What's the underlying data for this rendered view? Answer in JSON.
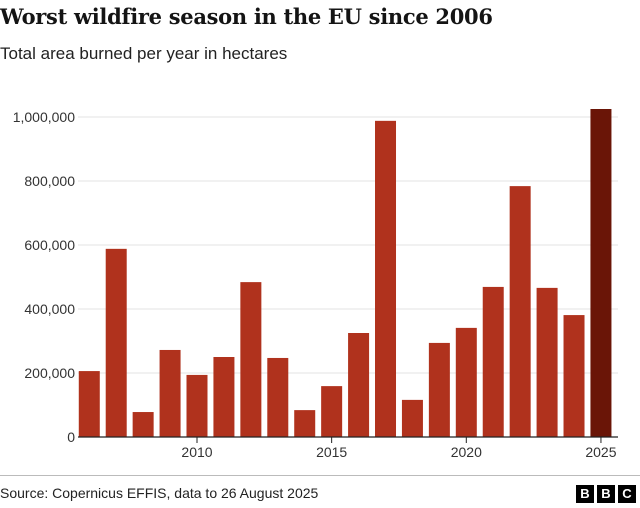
{
  "chart_data": {
    "type": "bar",
    "title": "Worst wildfire season in the EU since 2006",
    "subtitle": "Total area burned per year in hectares",
    "xlabel": "",
    "ylabel": "",
    "categories": [
      2006,
      2007,
      2008,
      2009,
      2010,
      2011,
      2012,
      2013,
      2014,
      2015,
      2016,
      2017,
      2018,
      2019,
      2020,
      2021,
      2022,
      2023,
      2024,
      2025
    ],
    "values": [
      206000,
      588000,
      78000,
      272000,
      194000,
      250000,
      484000,
      247000,
      84000,
      159000,
      325000,
      988000,
      116000,
      294000,
      341000,
      469000,
      784000,
      466000,
      381000,
      1025000
    ],
    "ylim": [
      0,
      1000000
    ],
    "yticks": [
      0,
      200000,
      400000,
      600000,
      800000,
      1000000
    ],
    "ytick_labels": [
      "0",
      "200,000",
      "400,000",
      "600,000",
      "800,000",
      "1,000,000"
    ],
    "xticks": [
      2010,
      2015,
      2020,
      2025
    ],
    "xtick_labels": [
      "2010",
      "2015",
      "2020",
      "2025"
    ],
    "grid": true,
    "colors": {
      "bar": "#b0321d",
      "highlight": "#6a1507",
      "grid": "#e3e3e3",
      "axis": "#222222"
    },
    "highlight_category": 2025
  },
  "footer": {
    "source": "Source: Copernicus EFFIS, data to 26 August 2025",
    "logo_letters": [
      "B",
      "B",
      "C"
    ]
  }
}
